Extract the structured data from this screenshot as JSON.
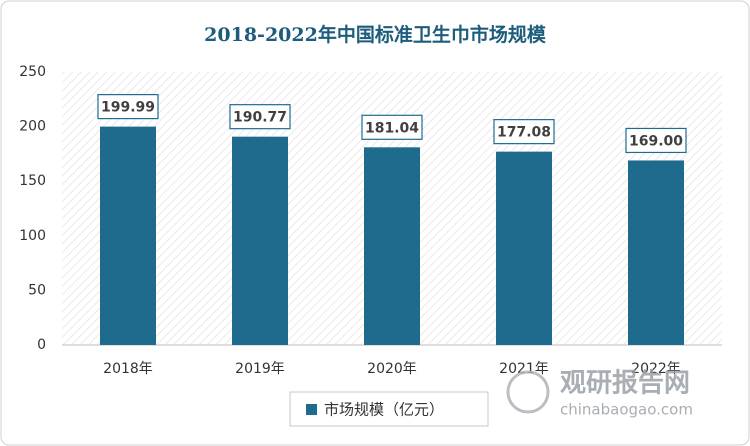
{
  "chart_data": {
    "type": "bar",
    "title": "2018-2022年中国标准卫生巾市场规模",
    "categories": [
      "2018年",
      "2019年",
      "2020年",
      "2021年",
      "2022年"
    ],
    "series": [
      {
        "name": "市场规模（亿元）",
        "color": "#1f6b8e",
        "values": [
          199.99,
          190.77,
          181.04,
          177.08,
          169.0
        ],
        "value_labels": [
          "199.99",
          "190.77",
          "181.04",
          "177.08",
          "169.00"
        ]
      }
    ],
    "ylim": [
      0,
      250
    ],
    "yticks": [
      0,
      50,
      100,
      150,
      200,
      250
    ],
    "grid": false,
    "legend": "bottom",
    "watermark": {
      "brand": "观研报告网",
      "site": "chinabaogao.com"
    }
  }
}
